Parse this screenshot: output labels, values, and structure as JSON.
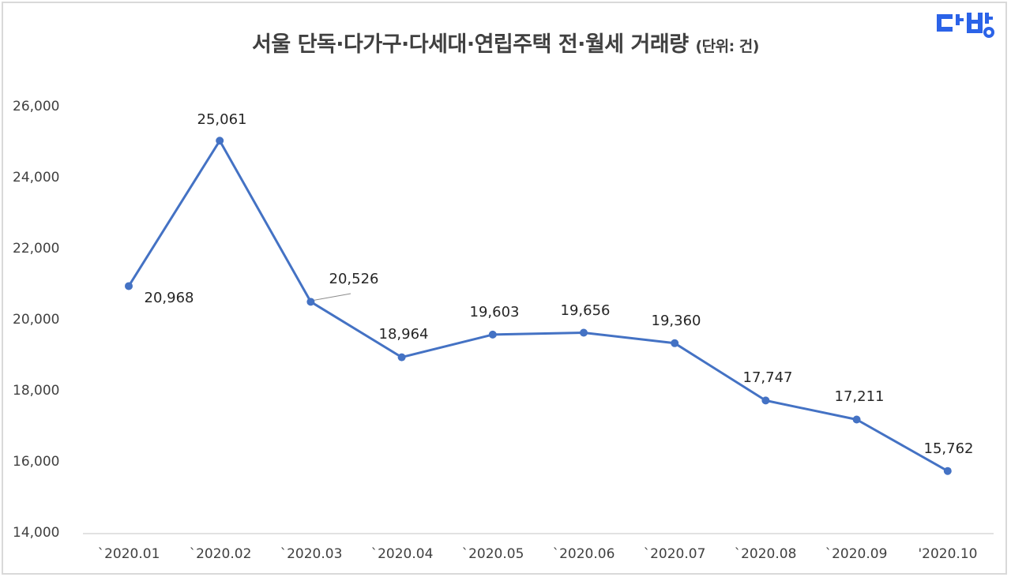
{
  "title": {
    "main": "서울 단독·다가구·다세대·연립주택 전·월세 거래량",
    "unit": "(단위: 건)"
  },
  "logo": {
    "text": "다방",
    "color": "#2b63e8"
  },
  "colors": {
    "line": "#4472c4",
    "axis": "#d9d9d9",
    "text": "#404040",
    "frame": "#d9d9d9"
  },
  "y_axis": {
    "ticks": [
      "26,000",
      "24,000",
      "22,000",
      "20,000",
      "18,000",
      "16,000",
      "14,000"
    ]
  },
  "x_axis": {
    "ticks": [
      "`2020.01",
      "`2020.02",
      "`2020.03",
      "`2020.04",
      "`2020.05",
      "`2020.06",
      "`2020.07",
      "`2020.08",
      "`2020.09",
      "'2020.10"
    ]
  },
  "data_labels": [
    "20,968",
    "25,061",
    "20,526",
    "18,964",
    "19,603",
    "19,656",
    "19,360",
    "17,747",
    "17,211",
    "15,762"
  ],
  "chart_data": {
    "type": "line",
    "title": "서울 단독·다가구·다세대·연립주택 전·월세 거래량 (단위: 건)",
    "xlabel": "",
    "ylabel": "",
    "categories": [
      "`2020.01",
      "`2020.02",
      "`2020.03",
      "`2020.04",
      "`2020.05",
      "`2020.06",
      "`2020.07",
      "`2020.08",
      "`2020.09",
      "'2020.10"
    ],
    "series": [
      {
        "name": "전·월세 거래량",
        "values": [
          20968,
          25061,
          20526,
          18964,
          19603,
          19656,
          19360,
          17747,
          17211,
          15762
        ],
        "color": "#4472c4",
        "markers": true
      }
    ],
    "ylim": [
      14000,
      26000
    ],
    "yticks": [
      14000,
      16000,
      18000,
      20000,
      22000,
      24000,
      26000
    ],
    "grid": false,
    "legend": "none",
    "data_labels": true
  }
}
